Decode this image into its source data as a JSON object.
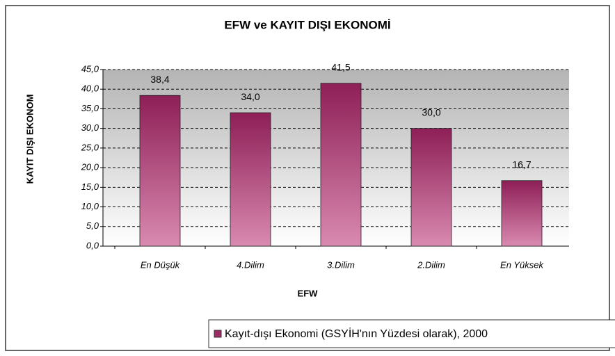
{
  "chart_data": {
    "type": "bar",
    "title": "EFW ve KAYIT DIŞI EKONOMİ",
    "x_label": "EFW",
    "y_label": "KAYIT DIŞI EKONOM",
    "categories": [
      "En Düşük",
      "4.Dilim",
      "3.Dilim",
      "2.Dilim",
      "En Yüksek"
    ],
    "series": [
      {
        "name": "Kayıt-dışı Ekonomi (GSYİH'nın Yüzdesi olarak), 2000",
        "color": "#9c2a63",
        "values": [
          38.4,
          34.0,
          41.5,
          30.0,
          16.7
        ],
        "value_labels": [
          "38,4",
          "34,0",
          "41,5",
          "30,0",
          "16,7"
        ]
      }
    ],
    "ylim": [
      0,
      45
    ],
    "yticks": [
      {
        "value": 0,
        "label": "0,0"
      },
      {
        "value": 5,
        "label": "5,0"
      },
      {
        "value": 10,
        "label": "10,0"
      },
      {
        "value": 15,
        "label": "15,0"
      },
      {
        "value": 20,
        "label": "20,0"
      },
      {
        "value": 25,
        "label": "25,0"
      },
      {
        "value": 30,
        "label": "30,0"
      },
      {
        "value": 35,
        "label": "35,0"
      },
      {
        "value": 40,
        "label": "40,0"
      },
      {
        "value": 45,
        "label": "45,0"
      }
    ],
    "grid": true,
    "legend": "bottom-right"
  }
}
